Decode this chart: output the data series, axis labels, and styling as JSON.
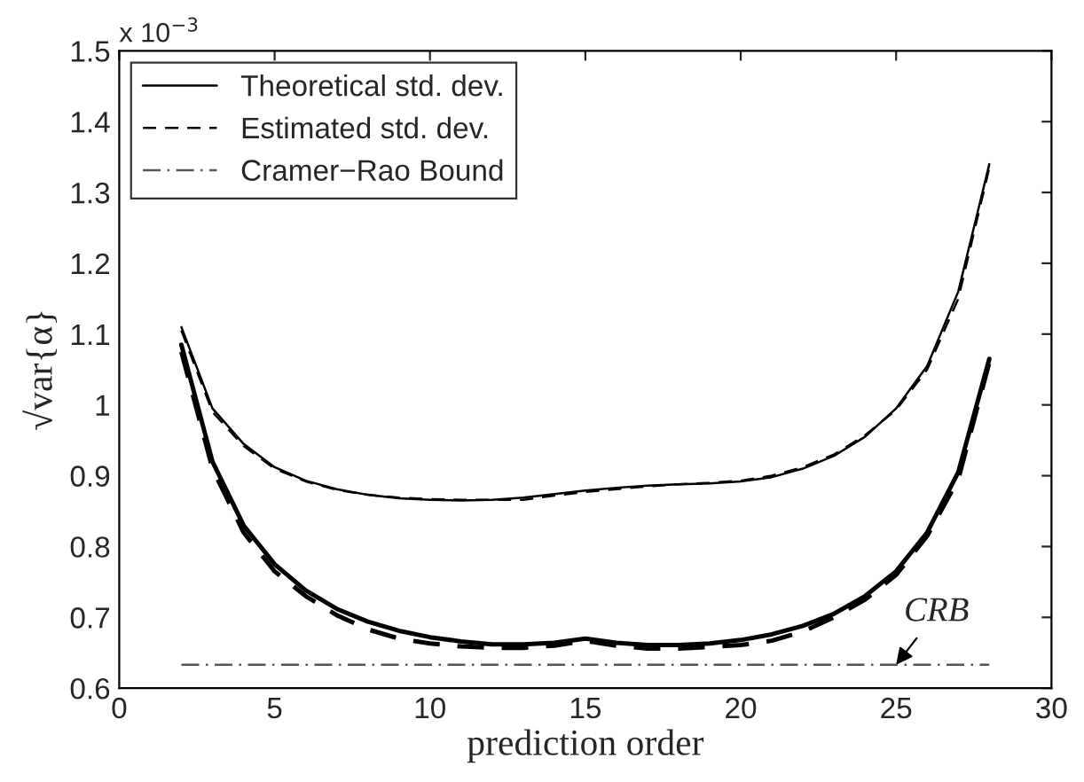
{
  "chart_data": {
    "type": "line",
    "xlabel": "prediction order",
    "ylabel": "√var{α}",
    "x": [
      2,
      3,
      4,
      5,
      6,
      7,
      8,
      9,
      10,
      11,
      12,
      13,
      14,
      15,
      16,
      17,
      18,
      19,
      20,
      21,
      22,
      23,
      24,
      25,
      26,
      27,
      28
    ],
    "series": [
      {
        "name": "Theoretical std. dev.",
        "color": "#000000",
        "line_style": "solid",
        "values": [
          1.11,
          0.995,
          0.945,
          0.912,
          0.893,
          0.881,
          0.873,
          0.868,
          0.866,
          0.865,
          0.866,
          0.869,
          0.874,
          0.879,
          0.883,
          0.886,
          0.888,
          0.889,
          0.892,
          0.898,
          0.91,
          0.928,
          0.955,
          0.995,
          1.055,
          1.16,
          1.34
        ]
      },
      {
        "name": "Estimated std. dev.",
        "color": "#000000",
        "line_style": "dashed",
        "values": [
          1.105,
          0.99,
          0.942,
          0.91,
          0.892,
          0.88,
          0.873,
          0.869,
          0.867,
          0.866,
          0.866,
          0.866,
          0.872,
          0.877,
          0.881,
          0.885,
          0.888,
          0.89,
          0.893,
          0.9,
          0.912,
          0.93,
          0.957,
          0.993,
          1.05,
          1.15,
          1.335
        ]
      },
      {
        "type": "line",
        "name": "Cramer−Rao Bound",
        "color": "#555555",
        "line_style": "dashdot",
        "x": [
          2,
          28
        ],
        "values": [
          0.633,
          0.633
        ]
      },
      {
        "color": "#000000",
        "line_style": "solid",
        "values": [
          1.085,
          0.92,
          0.83,
          0.775,
          0.738,
          0.712,
          0.694,
          0.681,
          0.672,
          0.666,
          0.662,
          0.662,
          0.664,
          0.67,
          0.664,
          0.661,
          0.661,
          0.663,
          0.668,
          0.676,
          0.688,
          0.705,
          0.73,
          0.765,
          0.82,
          0.905,
          1.065
        ]
      },
      {
        "color": "#000000",
        "line_style": "dashed",
        "values": [
          1.075,
          0.91,
          0.82,
          0.765,
          0.73,
          0.703,
          0.683,
          0.67,
          0.663,
          0.659,
          0.657,
          0.657,
          0.66,
          0.667,
          0.66,
          0.656,
          0.656,
          0.658,
          0.661,
          0.667,
          0.68,
          0.7,
          0.725,
          0.76,
          0.815,
          0.895,
          1.06
        ]
      }
    ],
    "xlim": [
      0,
      30
    ],
    "xticks": [
      0,
      5,
      10,
      15,
      20,
      25,
      30
    ],
    "ylim": [
      0.6,
      1.5
    ],
    "yticks": [
      0.6,
      0.7,
      0.8,
      0.9,
      1,
      1.1,
      1.2,
      1.3,
      1.4,
      1.5
    ],
    "annotations": [
      {
        "text": "CRB",
        "x": 25,
        "y": 0.633
      },
      "x 10$^{−3}$"
    ],
    "legend": "top left",
    "grid": false
  }
}
